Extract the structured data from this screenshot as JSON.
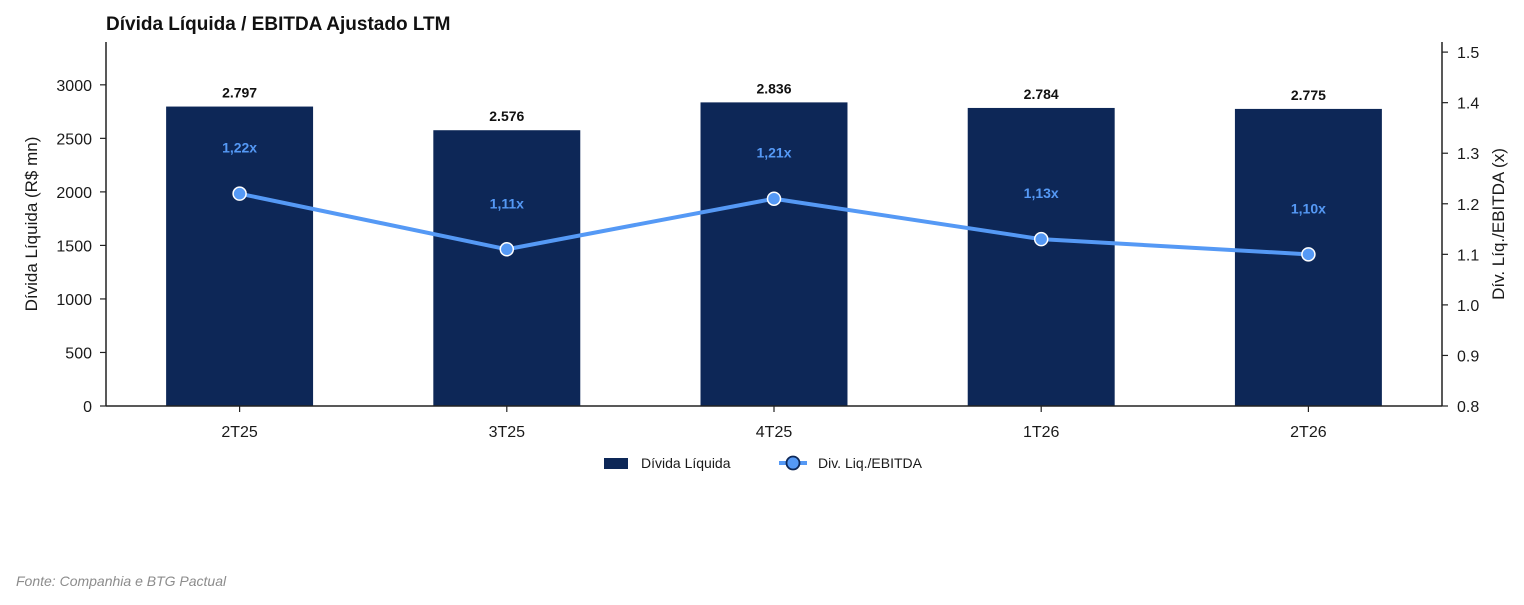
{
  "chart_data": {
    "type": "bar",
    "title": "Dívida Líquida / EBITDA Ajustado LTM",
    "categories": [
      "2T25",
      "3T25",
      "4T25",
      "1T26",
      "2T26"
    ],
    "series": [
      {
        "name": "Dívida Líquida",
        "type": "bar",
        "axis": "left",
        "values": [
          2797,
          2576,
          2836,
          2784,
          2775
        ],
        "labels": [
          "2.797",
          "2.576",
          "2.836",
          "2.784",
          "2.775"
        ],
        "color": "#0d2757"
      },
      {
        "name": "Div. Liq./EBITDA",
        "type": "line",
        "axis": "right",
        "values": [
          1.22,
          1.11,
          1.21,
          1.13,
          1.1
        ],
        "labels": [
          "1,22x",
          "1,11x",
          "1,21x",
          "1,13x",
          "1,10x"
        ],
        "color": "#5599f5"
      }
    ],
    "ylabel": "Dívida Líquida (R$ mn)",
    "ylim": [
      0,
      3400
    ],
    "yticks": [
      0,
      500,
      1000,
      1500,
      2000,
      2500,
      3000
    ],
    "y2label": "Dív. Líq./EBITDA (x)",
    "y2lim": [
      0.8,
      1.52
    ],
    "y2ticks": [
      "0.8",
      "0.9",
      "1.0",
      "1.1",
      "1.2",
      "1.3",
      "1.4",
      "1.5"
    ],
    "grid": false,
    "legend": "bottom-center"
  },
  "source": "Fonte: Companhia e BTG Pactual"
}
